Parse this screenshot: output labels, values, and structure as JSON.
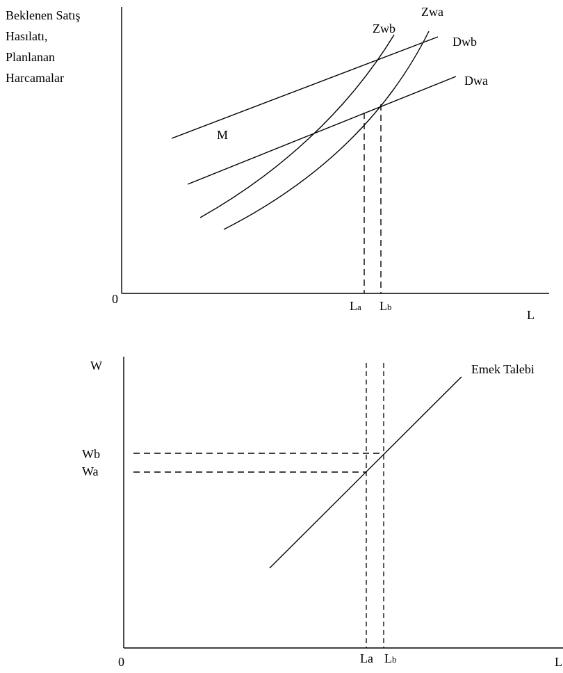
{
  "top_panel": {
    "y_axis_label_lines": [
      "Beklenen Satış",
      "Hasılatı,",
      "Planlanan",
      "Harcamalar"
    ],
    "origin": "0",
    "x_axis_label": "L",
    "curve_labels": {
      "zwa": "Zwa",
      "zwb": "Zwb",
      "dwb": "Dwb",
      "dwa": "Dwa",
      "m": "M"
    },
    "la_label": {
      "letter": "L",
      "sub": "a"
    },
    "lb_label": {
      "letter": "L",
      "sub": "b"
    }
  },
  "bottom_panel": {
    "y_axis_label": "W",
    "origin": "0",
    "x_axis_label": "L",
    "wb_label": "Wb",
    "wa_label": "Wa",
    "demand_label": "Emek Talebi",
    "la_label": "La",
    "lb_label": {
      "letter": "L",
      "sub": "b"
    }
  }
}
